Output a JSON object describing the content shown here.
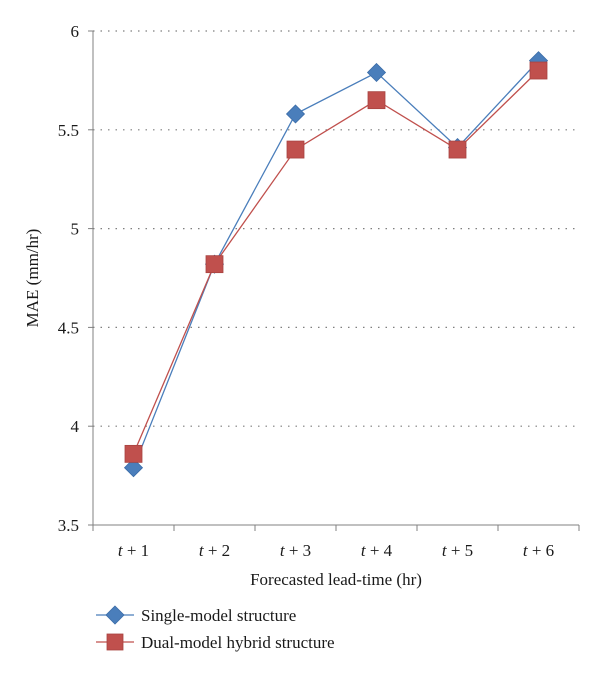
{
  "chart_data": {
    "type": "line",
    "title": "",
    "xlabel": "Forecasted lead-time (hr)",
    "ylabel": "MAE (mm/hr)",
    "categories": [
      "t + 1",
      "t + 2",
      "t + 3",
      "t + 4",
      "t + 5",
      "t + 6"
    ],
    "ylim": [
      3.5,
      6
    ],
    "yticks": [
      "3.5",
      "4",
      "4.5",
      "5",
      "5.5",
      "6"
    ],
    "grid": "horizontal dotted",
    "legend_position": "bottom-left",
    "series": [
      {
        "name": "Single-model structure",
        "values": [
          3.79,
          4.82,
          5.58,
          5.79,
          5.41,
          5.85
        ],
        "color": "#4a7ebb",
        "marker": "diamond"
      },
      {
        "name": "Dual-model hybrid structure",
        "values": [
          3.86,
          4.82,
          5.4,
          5.65,
          5.4,
          5.8
        ],
        "color": "#c0504d",
        "marker": "square"
      }
    ]
  }
}
